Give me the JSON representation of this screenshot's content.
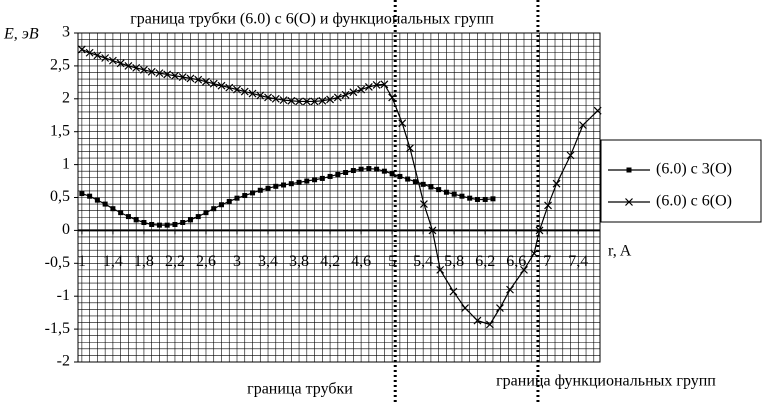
{
  "chart_data": {
    "type": "line",
    "title": "граница трубки (6.0) с 6(O) и функциональных групп",
    "y_label": "E, эВ",
    "x_label": "r, A",
    "annotations": [
      "граница трубки",
      "граница функциональных групп"
    ],
    "vlines": [
      5.04,
      6.88
    ],
    "xlim": [
      0.95,
      7.68
    ],
    "ylim": [
      -2,
      3
    ],
    "minor_grid": 0.1,
    "grid": true,
    "legend": "right",
    "xticks": [
      1,
      {
        "value": 1.4,
        "label": "1,4"
      },
      {
        "value": 1.8,
        "label": "1,8"
      },
      {
        "value": 2.2,
        "label": "2,2"
      },
      {
        "value": 2.6,
        "label": "2,6"
      },
      3,
      {
        "value": 3.4,
        "label": "3,4"
      },
      {
        "value": 3.8,
        "label": "3,8"
      },
      {
        "value": 4.2,
        "label": "4,2"
      },
      {
        "value": 4.6,
        "label": "4,6"
      },
      5,
      {
        "value": 5.4,
        "label": "5,4"
      },
      {
        "value": 5.8,
        "label": "5,8"
      },
      {
        "value": 6.2,
        "label": "6,2"
      },
      {
        "value": 6.6,
        "label": "6,6"
      },
      7,
      {
        "value": 7.4,
        "label": "7,4"
      }
    ],
    "yticks": [
      3,
      {
        "value": 2.5,
        "label": "2,5"
      },
      2,
      {
        "value": 1.5,
        "label": "1,5"
      },
      1,
      {
        "value": 0.5,
        "label": "0,5"
      },
      0,
      {
        "value": -0.5,
        "label": "-0,5"
      },
      -1,
      {
        "value": -1.5,
        "label": "-1,5"
      },
      -2
    ],
    "series": [
      {
        "name": "(6.0) с 3(O)",
        "color": "#000000",
        "marker": "square",
        "x": [
          1.0,
          1.1,
          1.2,
          1.3,
          1.4,
          1.5,
          1.6,
          1.7,
          1.8,
          1.9,
          2.0,
          2.1,
          2.2,
          2.3,
          2.4,
          2.5,
          2.6,
          2.7,
          2.8,
          2.9,
          3.0,
          3.1,
          3.2,
          3.3,
          3.4,
          3.5,
          3.6,
          3.7,
          3.8,
          3.9,
          4.0,
          4.1,
          4.2,
          4.3,
          4.4,
          4.5,
          4.6,
          4.7,
          4.8,
          4.9,
          5.0,
          5.1,
          5.2,
          5.3,
          5.4,
          5.5,
          5.6,
          5.7,
          5.8,
          5.9,
          6.0,
          6.1,
          6.2,
          6.3
        ],
        "values": [
          0.56,
          0.52,
          0.46,
          0.4,
          0.33,
          0.27,
          0.21,
          0.16,
          0.12,
          0.09,
          0.08,
          0.08,
          0.09,
          0.12,
          0.16,
          0.21,
          0.27,
          0.33,
          0.39,
          0.44,
          0.49,
          0.53,
          0.57,
          0.61,
          0.64,
          0.67,
          0.69,
          0.71,
          0.73,
          0.75,
          0.77,
          0.79,
          0.82,
          0.85,
          0.88,
          0.91,
          0.93,
          0.94,
          0.93,
          0.9,
          0.86,
          0.82,
          0.78,
          0.74,
          0.7,
          0.66,
          0.62,
          0.58,
          0.55,
          0.52,
          0.49,
          0.47,
          0.47,
          0.48
        ]
      },
      {
        "name": "(6.0) с 6(O)",
        "color": "#000000",
        "marker": "cross",
        "x": [
          1.0,
          1.1,
          1.2,
          1.3,
          1.4,
          1.5,
          1.6,
          1.7,
          1.8,
          1.9,
          2.0,
          2.1,
          2.2,
          2.3,
          2.4,
          2.5,
          2.6,
          2.7,
          2.8,
          2.9,
          3.0,
          3.1,
          3.2,
          3.3,
          3.4,
          3.5,
          3.6,
          3.7,
          3.8,
          3.9,
          4.0,
          4.1,
          4.2,
          4.3,
          4.4,
          4.5,
          4.6,
          4.7,
          4.8,
          4.9,
          5.0,
          5.13,
          5.23,
          5.41,
          5.52,
          5.62,
          5.79,
          5.94,
          6.1,
          6.26,
          6.39,
          6.52,
          6.7,
          6.83,
          6.9,
          7.01,
          7.12,
          7.3,
          7.46,
          7.65
        ],
        "values": [
          2.75,
          2.7,
          2.66,
          2.62,
          2.58,
          2.54,
          2.5,
          2.47,
          2.44,
          2.41,
          2.39,
          2.37,
          2.35,
          2.33,
          2.31,
          2.29,
          2.26,
          2.23,
          2.2,
          2.17,
          2.14,
          2.11,
          2.08,
          2.05,
          2.02,
          2.0,
          1.98,
          1.97,
          1.96,
          1.96,
          1.96,
          1.97,
          1.99,
          2.02,
          2.06,
          2.1,
          2.14,
          2.18,
          2.21,
          2.22,
          2.02,
          1.63,
          1.25,
          0.4,
          0,
          -0.6,
          -0.93,
          -1.18,
          -1.37,
          -1.43,
          -1.18,
          -0.9,
          -0.6,
          -0.35,
          0,
          0.38,
          0.71,
          1.14,
          1.6,
          1.82
        ]
      }
    ]
  }
}
